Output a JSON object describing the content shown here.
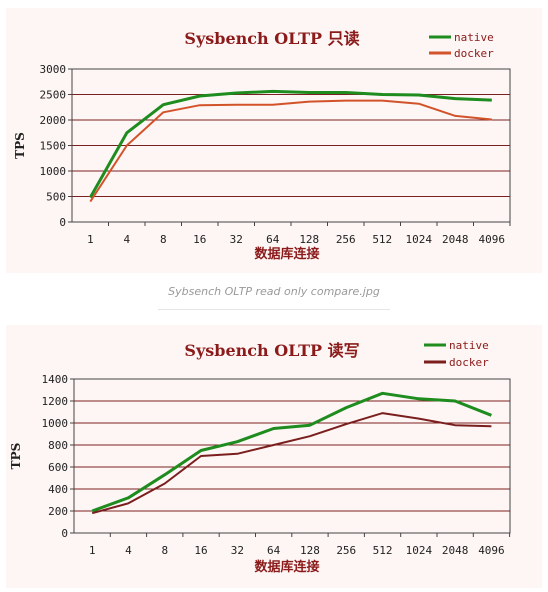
{
  "caption": "Sybsench OLTP read only compare.jpg",
  "chart_data": [
    {
      "type": "line",
      "title": "Sysbench OLTP 只读",
      "xlabel": "数据库连接",
      "ylabel": "TPS",
      "categories": [
        "1",
        "4",
        "8",
        "16",
        "32",
        "64",
        "128",
        "256",
        "512",
        "1024",
        "2048",
        "4096"
      ],
      "ylim": [
        0,
        3000
      ],
      "yticks": [
        0,
        500,
        1000,
        1500,
        2000,
        2500,
        3000
      ],
      "grid": true,
      "legend": "top-right",
      "series": [
        {
          "name": "native",
          "color": "#1e8c1e",
          "values": [
            480,
            1750,
            2300,
            2470,
            2530,
            2560,
            2540,
            2540,
            2500,
            2490,
            2420,
            2390
          ]
        },
        {
          "name": "docker",
          "color": "#d2532a",
          "values": [
            400,
            1500,
            2150,
            2290,
            2300,
            2300,
            2360,
            2380,
            2380,
            2320,
            2080,
            2010
          ]
        }
      ]
    },
    {
      "type": "line",
      "title": "Sysbench OLTP 读写",
      "xlabel": "数据库连接",
      "ylabel": "TPS",
      "categories": [
        "1",
        "4",
        "8",
        "16",
        "32",
        "64",
        "128",
        "256",
        "512",
        "1024",
        "2048",
        "4096"
      ],
      "ylim": [
        0,
        1400
      ],
      "yticks": [
        0,
        200,
        400,
        600,
        800,
        1000,
        1200,
        1400
      ],
      "grid": true,
      "legend": "top-right",
      "series": [
        {
          "name": "native",
          "color": "#1e8c1e",
          "values": [
            200,
            320,
            530,
            750,
            830,
            950,
            980,
            1140,
            1270,
            1220,
            1200,
            1070
          ]
        },
        {
          "name": "docker",
          "color": "#7a1e1e",
          "values": [
            180,
            270,
            450,
            700,
            720,
            800,
            880,
            990,
            1090,
            1040,
            980,
            970
          ]
        }
      ]
    }
  ]
}
